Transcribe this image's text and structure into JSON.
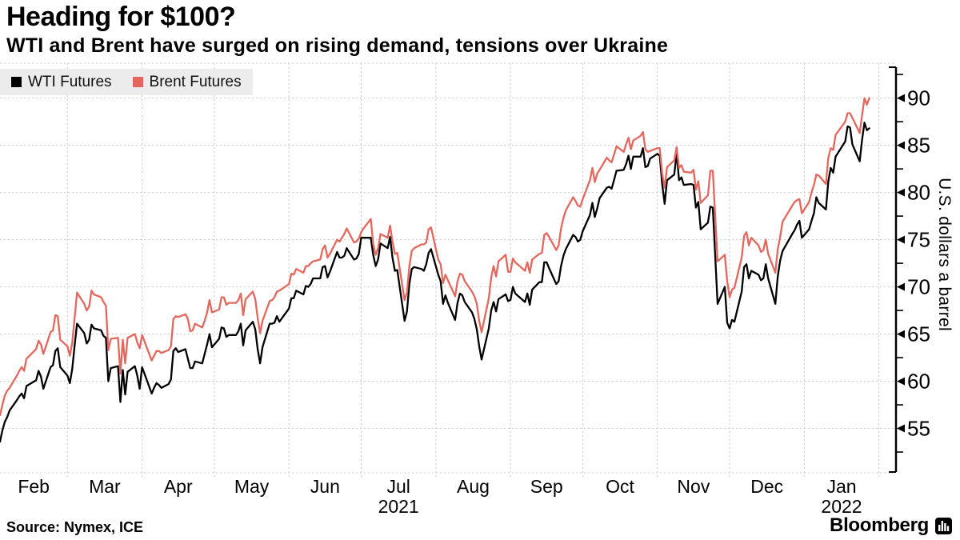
{
  "header": {
    "title": "Heading for $100?",
    "subtitle": "WTI and Brent have surged on rising demand, tensions over Ukraine"
  },
  "legend": {
    "items": [
      {
        "label": "WTI Futures",
        "color": "#000000"
      },
      {
        "label": "Brent Futures",
        "color": "#e4675e"
      }
    ]
  },
  "footer": {
    "source": "Source: Nymex, ICE",
    "brand": "Bloomberg",
    "brand_icon": "bloomberg-bars-icon"
  },
  "styles": {
    "accent_red": "#e4675e",
    "series_black": "#000000",
    "grid_color": "#c9c9c9",
    "legend_bg": "#ececec",
    "axis_color": "#000000"
  },
  "chart_data": {
    "type": "line",
    "title": "Heading for $100?",
    "subtitle": "WTI and Brent have surged on rising demand, tensions over Ukraine",
    "xlabel": "",
    "ylabel": "U.S. dollars a barrel",
    "y_axis_range": [
      50.3,
      93.7
    ],
    "y_ticks": [
      55,
      60,
      65,
      70,
      75,
      80,
      85,
      90
    ],
    "y_minor_ticks": [
      52.5,
      57.5,
      62.5,
      67.5,
      72.5,
      77.5,
      82.5,
      87.5,
      92.5
    ],
    "grid": true,
    "legend_position": "top-left",
    "x_tick_labels": [
      "Feb",
      "Mar",
      "Apr",
      "May",
      "Jun",
      "Jul",
      "Aug",
      "Sep",
      "Oct",
      "Nov",
      "Dec",
      "Jan"
    ],
    "x_year_labels": [
      {
        "text": "2021",
        "month_index": 5
      },
      {
        "text": "2022",
        "month_index": 11
      }
    ],
    "x_month_starts": [
      "2021-02-01",
      "2021-03-01",
      "2021-04-01",
      "2021-05-01",
      "2021-06-01",
      "2021-07-01",
      "2021-08-01",
      "2021-09-01",
      "2021-10-01",
      "2021-11-01",
      "2021-12-01",
      "2022-01-01",
      "2022-02-01"
    ],
    "x_dates": [
      {
        "m": "2021-02",
        "d": [
          1,
          2,
          3,
          4,
          5,
          8,
          9,
          10,
          11,
          12,
          16,
          17,
          18,
          19,
          22,
          23,
          24,
          25,
          26
        ]
      },
      {
        "m": "2021-03",
        "d": [
          1,
          2,
          3,
          4,
          5,
          8,
          9,
          10,
          11,
          12,
          15,
          16,
          17,
          18,
          19,
          22,
          23,
          24,
          25,
          26,
          29,
          30,
          31
        ]
      },
      {
        "m": "2021-04",
        "d": [
          1,
          5,
          6,
          7,
          8,
          9,
          12,
          13,
          14,
          15,
          16,
          19,
          20,
          21,
          22,
          23,
          26,
          27,
          28,
          29,
          30
        ]
      },
      {
        "m": "2021-05",
        "d": [
          3,
          4,
          5,
          6,
          7,
          10,
          11,
          12,
          13,
          14,
          17,
          18,
          19,
          20,
          21,
          24,
          25,
          26,
          27,
          28
        ]
      },
      {
        "m": "2021-06",
        "d": [
          1,
          2,
          3,
          4,
          7,
          8,
          9,
          10,
          11,
          14,
          15,
          16,
          17,
          18,
          21,
          22,
          23,
          24,
          25,
          28,
          29,
          30
        ]
      },
      {
        "m": "2021-07",
        "d": [
          1,
          2,
          5,
          6,
          7,
          8,
          9,
          12,
          13,
          14,
          15,
          16,
          19,
          20,
          21,
          22,
          23,
          26,
          27,
          28,
          29,
          30
        ]
      },
      {
        "m": "2021-08",
        "d": [
          2,
          3,
          4,
          5,
          6,
          9,
          10,
          11,
          12,
          13,
          16,
          17,
          18,
          19,
          20,
          23,
          24,
          25,
          26,
          27,
          30,
          31
        ]
      },
      {
        "m": "2021-09",
        "d": [
          1,
          2,
          3,
          7,
          8,
          9,
          10,
          13,
          14,
          15,
          16,
          17,
          20,
          21,
          22,
          23,
          24,
          27,
          28,
          29,
          30
        ]
      },
      {
        "m": "2021-10",
        "d": [
          1,
          4,
          5,
          6,
          7,
          8,
          11,
          12,
          13,
          14,
          15,
          18,
          19,
          20,
          21,
          22,
          25,
          26,
          27,
          28,
          29
        ]
      },
      {
        "m": "2021-11",
        "d": [
          1,
          2,
          3,
          4,
          5,
          8,
          9,
          10,
          11,
          12,
          15,
          16,
          17,
          18,
          19,
          22,
          23,
          24,
          26,
          29,
          30
        ]
      },
      {
        "m": "2021-12",
        "d": [
          1,
          2,
          3,
          6,
          7,
          8,
          9,
          10,
          13,
          14,
          15,
          16,
          17,
          20,
          21,
          22,
          23,
          27,
          28,
          29,
          30,
          31
        ]
      },
      {
        "m": "2022-01",
        "d": [
          3,
          4,
          5,
          6,
          7,
          10,
          11,
          12,
          13,
          14,
          18,
          19,
          20,
          21,
          24,
          25,
          26,
          27,
          28
        ]
      }
    ],
    "series": [
      {
        "name": "WTI Futures",
        "color": "#000000",
        "values": [
          53.6,
          54.8,
          55.7,
          56.2,
          56.9,
          58.0,
          58.4,
          58.7,
          58.2,
          59.5,
          60.1,
          61.1,
          60.5,
          59.2,
          61.5,
          61.7,
          63.2,
          63.5,
          61.5,
          60.6,
          59.8,
          61.3,
          63.8,
          66.1,
          65.1,
          64.0,
          64.4,
          66.0,
          65.6,
          65.4,
          64.8,
          64.6,
          60.0,
          61.4,
          61.6,
          57.8,
          61.2,
          58.6,
          61.0,
          61.6,
          60.6,
          59.2,
          61.5,
          58.7,
          59.3,
          59.8,
          59.6,
          59.3,
          59.7,
          60.2,
          63.2,
          63.5,
          63.1,
          63.4,
          62.4,
          61.4,
          61.4,
          62.1,
          61.9,
          62.9,
          63.9,
          65.0,
          63.6,
          64.5,
          65.7,
          65.6,
          64.7,
          64.9,
          64.9,
          65.3,
          66.1,
          63.8,
          65.4,
          66.3,
          65.5,
          63.4,
          61.9,
          63.6,
          66.1,
          66.1,
          66.2,
          66.9,
          66.3,
          67.7,
          68.8,
          68.8,
          69.6,
          69.2,
          70.1,
          70.0,
          70.3,
          70.9,
          70.9,
          72.1,
          72.2,
          71.0,
          71.6,
          73.7,
          73.1,
          73.1,
          73.3,
          74.1,
          72.9,
          73.0,
          73.5,
          75.2,
          75.2,
          75.2,
          73.4,
          72.2,
          72.9,
          74.6,
          74.1,
          75.3,
          73.1,
          71.7,
          71.8,
          66.4,
          67.4,
          70.3,
          71.9,
          72.1,
          71.9,
          71.7,
          72.4,
          73.6,
          74.0,
          71.3,
          70.6,
          68.2,
          69.1,
          68.3,
          66.5,
          68.3,
          69.3,
          69.1,
          68.4,
          67.3,
          66.6,
          65.5,
          63.7,
          62.3,
          65.6,
          67.5,
          68.4,
          67.4,
          68.7,
          69.2,
          68.5,
          68.6,
          70.0,
          69.3,
          68.4,
          69.3,
          68.1,
          69.7,
          70.5,
          70.5,
          72.6,
          72.6,
          72.0,
          70.3,
          70.6,
          72.2,
          73.3,
          74.0,
          75.5,
          75.3,
          74.8,
          75.0,
          75.9,
          77.6,
          78.9,
          77.4,
          78.3,
          79.4,
          80.5,
          80.6,
          80.4,
          81.3,
          82.3,
          82.4,
          83.0,
          83.9,
          82.5,
          83.8,
          83.8,
          84.7,
          82.7,
          82.8,
          83.6,
          84.1,
          83.9,
          80.9,
          78.8,
          81.3,
          81.9,
          84.2,
          81.3,
          81.6,
          80.8,
          80.9,
          80.8,
          78.4,
          79.0,
          76.1,
          76.8,
          78.5,
          78.4,
          68.2,
          70.0,
          66.2,
          65.6,
          66.5,
          66.3,
          69.5,
          72.1,
          72.4,
          70.9,
          71.7,
          71.3,
          70.7,
          70.9,
          72.4,
          70.9,
          68.2,
          71.1,
          72.8,
          73.8,
          75.6,
          76.0,
          76.6,
          77.0,
          75.2,
          76.1,
          77.0,
          77.8,
          79.5,
          78.9,
          78.2,
          81.2,
          82.6,
          82.1,
          83.8,
          85.4,
          87.0,
          86.9,
          85.1,
          83.3,
          85.6,
          87.4,
          86.6,
          86.8
        ]
      },
      {
        "name": "Brent Futures",
        "color": "#e4675e",
        "values": [
          56.4,
          57.5,
          58.5,
          59.0,
          59.3,
          60.6,
          61.1,
          61.5,
          61.1,
          62.4,
          63.4,
          64.3,
          63.9,
          62.9,
          65.2,
          65.4,
          67.0,
          66.9,
          64.4,
          63.7,
          62.7,
          64.1,
          66.7,
          69.4,
          68.2,
          67.5,
          67.9,
          69.6,
          69.2,
          68.9,
          68.4,
          68.0,
          63.3,
          64.5,
          64.6,
          60.8,
          64.4,
          61.9,
          64.6,
          65.0,
          64.1,
          63.5,
          64.9,
          62.2,
          62.7,
          63.2,
          63.2,
          63.0,
          63.3,
          63.7,
          66.6,
          66.9,
          66.8,
          67.1,
          66.6,
          65.3,
          65.4,
          66.1,
          65.7,
          66.4,
          67.3,
          68.6,
          67.3,
          67.6,
          68.9,
          68.9,
          68.1,
          68.3,
          68.3,
          68.6,
          69.3,
          67.0,
          68.7,
          69.5,
          68.7,
          66.7,
          65.1,
          66.4,
          68.5,
          68.6,
          68.9,
          69.5,
          69.6,
          70.3,
          71.4,
          71.3,
          71.9,
          71.5,
          72.2,
          72.2,
          72.5,
          72.7,
          72.9,
          74.0,
          74.4,
          73.1,
          73.5,
          75.0,
          74.8,
          75.2,
          75.6,
          76.2,
          74.7,
          74.8,
          75.1,
          75.8,
          76.2,
          77.2,
          74.5,
          73.4,
          74.1,
          75.6,
          75.2,
          76.5,
          74.8,
          73.5,
          73.6,
          68.6,
          69.4,
          72.2,
          73.8,
          74.1,
          74.5,
          74.5,
          74.7,
          76.1,
          76.3,
          72.9,
          72.4,
          70.4,
          71.3,
          70.7,
          69.0,
          70.6,
          71.4,
          71.3,
          70.6,
          69.5,
          69.0,
          68.2,
          66.4,
          65.2,
          68.8,
          71.0,
          72.2,
          71.1,
          72.7,
          73.4,
          71.6,
          71.6,
          73.0,
          72.6,
          71.7,
          72.6,
          71.5,
          72.9,
          73.5,
          73.6,
          75.5,
          75.7,
          75.3,
          73.9,
          74.4,
          76.2,
          77.3,
          78.1,
          79.5,
          79.1,
          78.6,
          78.5,
          79.3,
          81.3,
          82.6,
          81.1,
          82.0,
          82.4,
          83.7,
          83.4,
          83.2,
          84.0,
          84.9,
          84.3,
          85.1,
          85.8,
          84.6,
          85.5,
          86.0,
          86.4,
          84.6,
          84.3,
          84.4,
          84.7,
          84.7,
          82.0,
          80.5,
          82.7,
          83.4,
          84.8,
          82.6,
          82.9,
          82.2,
          82.1,
          82.4,
          80.3,
          81.2,
          78.9,
          79.7,
          82.3,
          82.3,
          72.7,
          73.4,
          70.6,
          68.9,
          69.7,
          69.9,
          73.1,
          75.4,
          75.8,
          74.4,
          75.2,
          74.4,
          73.7,
          73.9,
          75.0,
          73.5,
          71.5,
          74.0,
          75.3,
          76.9,
          78.6,
          79.0,
          79.2,
          79.3,
          77.8,
          79.0,
          80.0,
          80.8,
          81.9,
          81.8,
          80.9,
          83.7,
          84.7,
          84.5,
          86.1,
          87.5,
          88.4,
          88.4,
          87.9,
          86.3,
          88.2,
          90.0,
          89.3,
          90.0
        ]
      }
    ]
  }
}
